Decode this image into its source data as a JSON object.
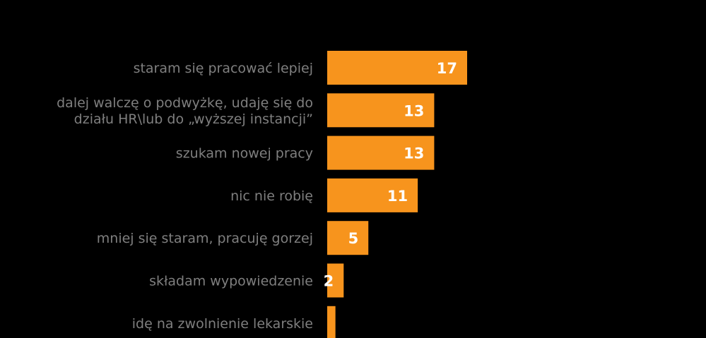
{
  "chart_data": {
    "type": "bar",
    "orientation": "horizontal",
    "categories": [
      "staram się pracować lepiej",
      "dalej walczę o podwyżkę, udaję się do działu HR\\lub do „wyższej instancji”",
      "szukam nowej pracy",
      "nic nie robię",
      "mniej się staram, pracuję gorzej",
      "składam wypowiedzenie",
      "idę na zwolnienie lekarskie"
    ],
    "category_lines": [
      [
        "staram się pracować lepiej"
      ],
      [
        "dalej walczę o podwyżkę, udaję się do",
        "działu HR\\lub do „wyższej instancji”"
      ],
      [
        "szukam nowej pracy"
      ],
      [
        "nic nie robię"
      ],
      [
        "mniej się staram, pracuję gorzej"
      ],
      [
        "składam wypowiedzenie"
      ],
      [
        "idę na zwolnienie lekarskie"
      ]
    ],
    "values": [
      17,
      13,
      13,
      11,
      5,
      2,
      1
    ],
    "data_labels": [
      "17",
      "13",
      "13",
      "11",
      "5",
      "2",
      ""
    ],
    "bar_color": "#f7941d",
    "label_color": "#7f7f7f",
    "value_label_color": "#ffffff",
    "background": "#000000",
    "xlim": [
      0,
      17
    ],
    "grid": false,
    "legend": "none"
  }
}
